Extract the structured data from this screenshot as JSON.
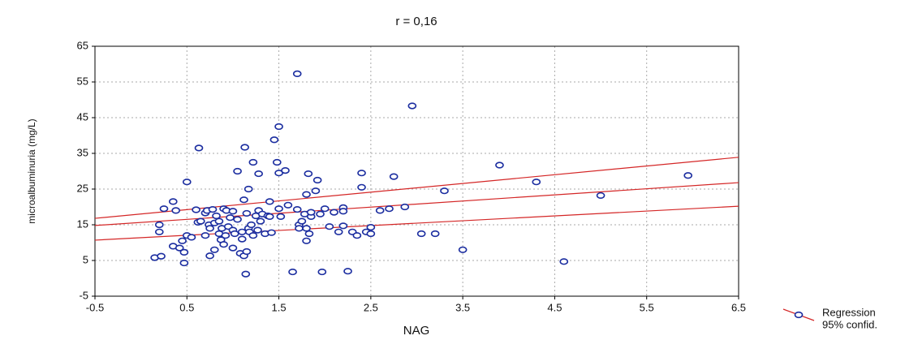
{
  "chart_data": {
    "type": "scatter",
    "title": "r = 0,16",
    "x_label": "NAG",
    "y_label": "microalbuminuria (mg/L)",
    "xlim": [
      -0.5,
      6.5
    ],
    "xticks": [
      -0.5,
      0.5,
      1.5,
      2.5,
      3.5,
      4.5,
      5.5,
      6.5
    ],
    "ylim": [
      -5,
      65
    ],
    "yticks": [
      -5,
      5,
      15,
      25,
      35,
      45,
      55,
      65
    ],
    "grid": true,
    "point_color": "#1c2ea0",
    "line_color": "#d42626",
    "x": [
      0.15,
      0.22,
      0.2,
      0.2,
      0.25,
      0.35,
      0.38,
      0.35,
      0.42,
      0.45,
      0.47,
      0.47,
      0.5,
      0.5,
      0.55,
      0.6,
      0.62,
      0.63,
      0.65,
      0.7,
      0.7,
      0.72,
      0.74,
      0.75,
      0.75,
      0.78,
      0.8,
      0.8,
      0.82,
      0.85,
      0.85,
      0.87,
      0.88,
      0.9,
      0.9,
      0.92,
      0.93,
      0.95,
      0.97,
      1.0,
      1.0,
      1.0,
      1.02,
      1.05,
      1.05,
      1.08,
      1.1,
      1.1,
      1.12,
      1.12,
      1.13,
      1.14,
      1.15,
      1.15,
      1.17,
      1.17,
      1.18,
      1.2,
      1.22,
      1.22,
      1.25,
      1.27,
      1.28,
      1.28,
      1.3,
      1.32,
      1.35,
      1.38,
      1.4,
      1.4,
      1.42,
      1.45,
      1.48,
      1.5,
      1.5,
      1.5,
      1.52,
      1.57,
      1.6,
      1.65,
      1.7,
      1.7,
      1.72,
      1.72,
      1.75,
      1.78,
      1.8,
      1.8,
      1.8,
      1.82,
      1.83,
      1.85,
      1.85,
      1.9,
      1.92,
      1.95,
      1.97,
      2.0,
      2.05,
      2.1,
      2.15,
      2.2,
      2.2,
      2.2,
      2.25,
      2.3,
      2.35,
      2.4,
      2.4,
      2.45,
      2.5,
      2.5,
      2.6,
      2.7,
      2.75,
      2.87,
      2.95,
      3.05,
      3.2,
      3.3,
      3.5,
      3.9,
      4.3,
      4.6,
      5.0,
      5.95
    ],
    "series": [
      {
        "name": "Regression",
        "values": [
          5.8,
          6.2,
          13,
          15,
          19.5,
          21.5,
          19,
          9,
          8.5,
          10.5,
          4.3,
          7.3,
          12,
          27,
          11.5,
          19.2,
          15.7,
          36.5,
          16,
          12,
          18.3,
          19,
          15,
          14,
          6.3,
          19.3,
          8,
          15.5,
          17.5,
          12.5,
          16,
          10.8,
          14,
          19.5,
          9.5,
          12,
          19,
          14.5,
          17,
          18.8,
          13.5,
          8.5,
          12.5,
          30,
          16.5,
          7,
          11,
          13,
          6.3,
          22,
          36.7,
          1.2,
          18.2,
          7.5,
          14,
          25,
          13,
          15,
          12,
          32.5,
          17.5,
          13.5,
          19,
          29.3,
          16,
          18,
          12.5,
          17.5,
          21.5,
          17.3,
          12.8,
          38.8,
          32.5,
          42.5,
          29.5,
          19.5,
          17.3,
          30.2,
          20.5,
          1.8,
          57.3,
          19.3,
          15,
          14,
          16,
          18,
          23.5,
          10.5,
          14,
          29.3,
          12.5,
          17.3,
          18.5,
          24.5,
          27.5,
          18,
          1.8,
          19.5,
          14.5,
          18.5,
          13,
          14.7,
          19.8,
          18.8,
          2,
          13,
          12,
          29.5,
          25.5,
          13,
          12.5,
          14.3,
          19,
          19.5,
          28.5,
          20,
          48.3,
          12.5,
          12.5,
          24.5,
          8,
          31.7,
          27,
          4.7,
          23.2,
          28.8
        ]
      }
    ],
    "regression": {
      "name": "95% confid.",
      "x": [
        -0.5,
        6.5
      ],
      "fit": [
        14.8,
        26.8
      ],
      "upper": [
        16.8,
        33.9
      ],
      "lower": [
        10.7,
        20.2
      ]
    }
  }
}
